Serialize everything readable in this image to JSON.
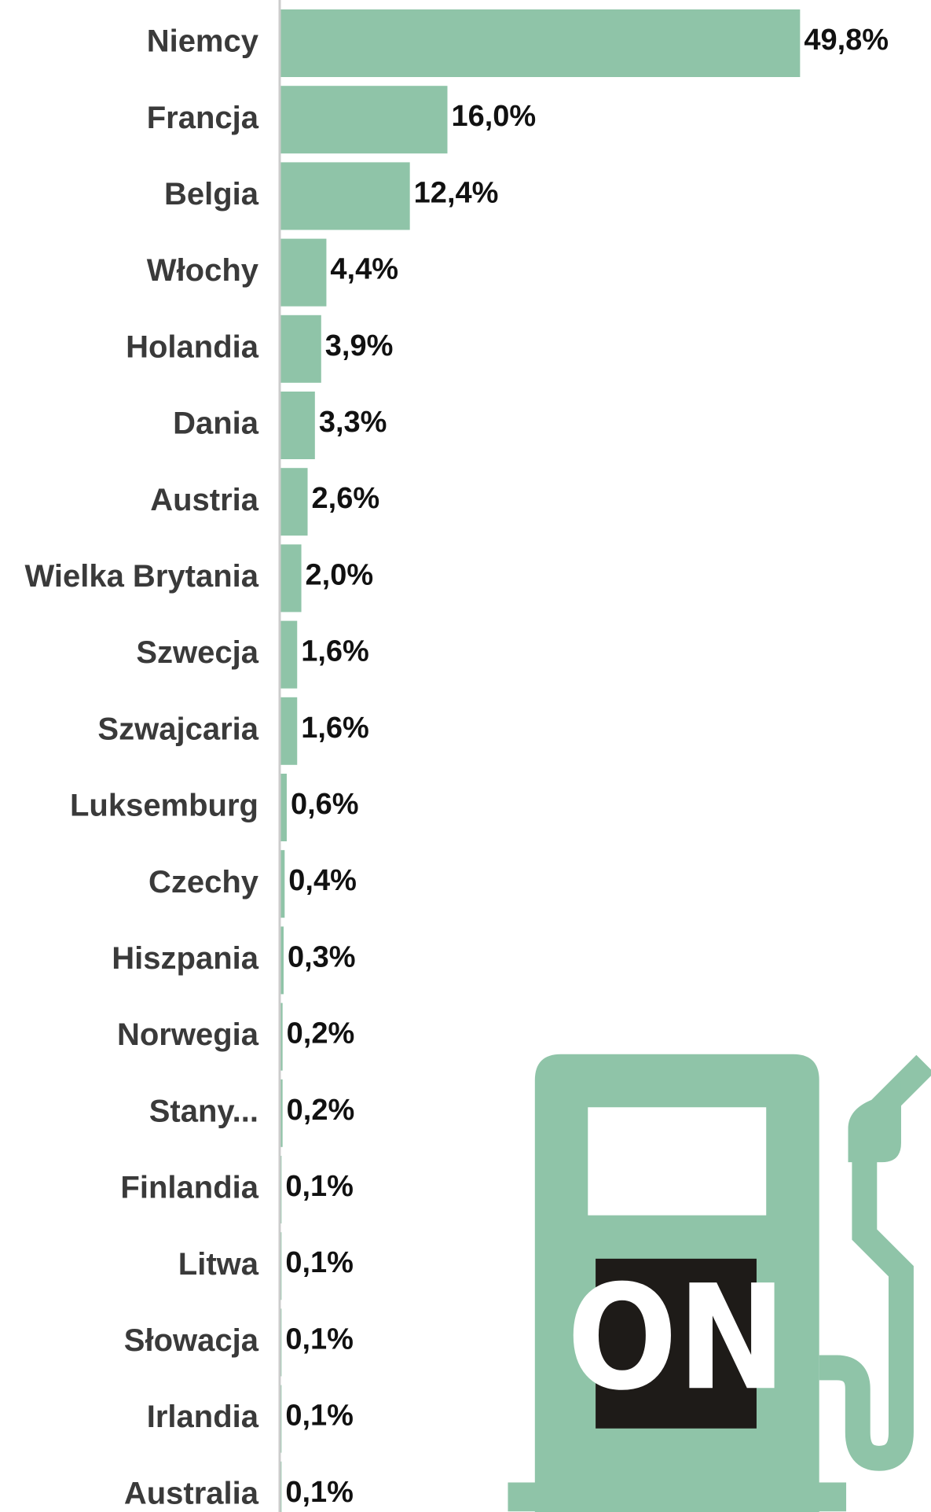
{
  "chart_data": {
    "type": "bar",
    "orientation": "horizontal",
    "categories": [
      "Niemcy",
      "Francja",
      "Belgia",
      "Włochy",
      "Holandia",
      "Dania",
      "Austria",
      "Wielka Brytania",
      "Szwecja",
      "Szwajcaria",
      "Luksemburg",
      "Czechy",
      "Hiszpania",
      "Norwegia",
      "Stany...",
      "Finlandia",
      "Litwa",
      "Słowacja",
      "Irlandia",
      "Australia"
    ],
    "values": [
      49.8,
      16.0,
      12.4,
      4.4,
      3.9,
      3.3,
      2.6,
      2.0,
      1.6,
      1.6,
      0.6,
      0.4,
      0.3,
      0.2,
      0.2,
      0.1,
      0.1,
      0.1,
      0.1,
      0.1
    ],
    "value_labels": [
      "49,8%",
      "16,0%",
      "12,4%",
      "4,4%",
      "3,9%",
      "3,3%",
      "2,6%",
      "2,0%",
      "1,6%",
      "1,6%",
      "0,6%",
      "0,4%",
      "0,3%",
      "0,2%",
      "0,2%",
      "0,1%",
      "0,1%",
      "0,1%",
      "0,1%",
      "0,1%"
    ],
    "color": "#8fc4a8",
    "xlim": [
      0,
      50
    ]
  },
  "icon_label": "ON"
}
